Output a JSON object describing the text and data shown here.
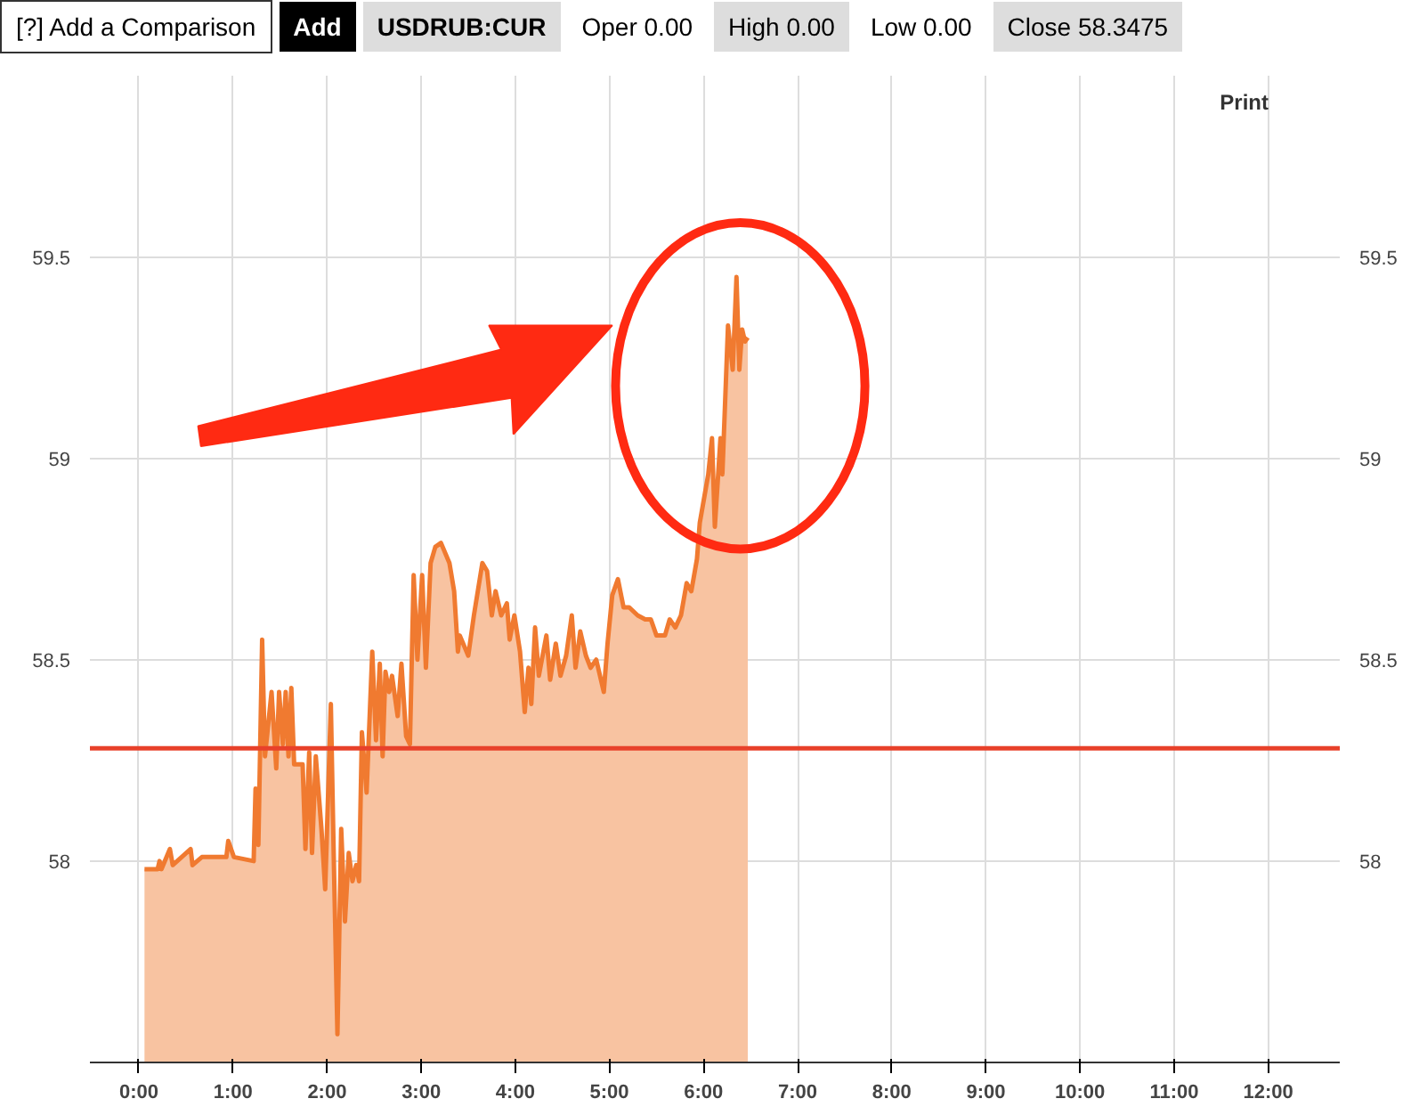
{
  "chart_data": {
    "type": "area",
    "annotations": [
      "[?] Add a Comparison",
      "Add",
      "USDRUB:CUR",
      "Oper 0.00",
      "High 0.00",
      "Low 0.00",
      "Close 58.3475",
      "Print"
    ],
    "x": [
      0.06,
      0.2,
      0.22,
      0.24,
      0.33,
      0.36,
      0.55,
      0.57,
      0.67,
      0.93,
      0.95,
      1.01,
      1.22,
      1.24,
      1.27,
      1.31,
      1.34,
      1.41,
      1.46,
      1.49,
      1.53,
      1.56,
      1.59,
      1.62,
      1.65,
      1.74,
      1.77,
      1.81,
      1.84,
      1.88,
      1.94,
      1.98,
      2.04,
      2.07,
      2.11,
      2.15,
      2.19,
      2.23,
      2.27,
      2.31,
      2.34,
      2.37,
      2.42,
      2.48,
      2.52,
      2.56,
      2.59,
      2.62,
      2.66,
      2.69,
      2.75,
      2.79,
      2.84,
      2.88,
      2.92,
      2.96,
      3.01,
      3.05,
      3.1,
      3.15,
      3.21,
      3.3,
      3.35,
      3.39,
      3.41,
      3.5,
      3.56,
      3.65,
      3.7,
      3.75,
      3.79,
      3.85,
      3.91,
      3.94,
      3.99,
      4.05,
      4.1,
      4.14,
      4.17,
      4.21,
      4.25,
      4.33,
      4.37,
      4.43,
      4.48,
      4.54,
      4.6,
      4.64,
      4.69,
      4.75,
      4.8,
      4.86,
      4.94,
      4.98,
      5.03,
      5.09,
      5.15,
      5.21,
      5.3,
      5.38,
      5.44,
      5.5,
      5.59,
      5.64,
      5.7,
      5.76,
      5.82,
      5.87,
      5.93,
      5.96,
      6.05,
      6.09,
      6.12,
      6.18,
      6.2,
      6.26,
      6.31,
      6.35,
      6.38,
      6.41,
      6.44,
      6.47
    ],
    "series": [
      {
        "color": "#f07a30",
        "values": [
          57.98,
          57.98,
          58.0,
          57.98,
          58.03,
          57.99,
          58.03,
          57.99,
          58.01,
          58.01,
          58.05,
          58.01,
          58.0,
          58.18,
          58.04,
          58.55,
          58.26,
          58.42,
          58.23,
          58.42,
          58.29,
          58.42,
          58.26,
          58.43,
          58.24,
          58.24,
          58.03,
          58.27,
          58.02,
          58.26,
          58.08,
          57.93,
          58.39,
          58.02,
          57.57,
          58.08,
          57.85,
          58.02,
          57.95,
          57.99,
          57.95,
          58.32,
          58.17,
          58.52,
          58.3,
          58.49,
          58.26,
          58.47,
          58.42,
          58.46,
          58.36,
          58.49,
          58.31,
          58.29,
          58.71,
          58.5,
          58.71,
          58.48,
          58.74,
          58.78,
          58.79,
          58.74,
          58.67,
          58.52,
          58.56,
          58.51,
          58.61,
          58.74,
          58.72,
          58.61,
          58.67,
          58.61,
          58.64,
          58.55,
          58.61,
          58.52,
          58.37,
          58.48,
          58.39,
          58.58,
          58.46,
          58.56,
          58.45,
          58.54,
          58.46,
          58.51,
          58.61,
          58.48,
          58.57,
          58.51,
          58.48,
          58.5,
          58.42,
          58.54,
          58.66,
          58.7,
          58.63,
          58.63,
          58.61,
          58.6,
          58.6,
          58.56,
          58.56,
          58.6,
          58.58,
          58.61,
          58.69,
          58.67,
          58.75,
          58.84,
          58.96,
          59.05,
          58.83,
          59.05,
          58.96,
          59.33,
          59.22,
          59.45,
          59.22,
          59.32,
          59.29,
          59.3
        ]
      }
    ],
    "xlim": [
      -0.52,
      12.76
    ],
    "xticks": [
      {
        "value": 0,
        "label": "0:00"
      },
      {
        "value": 1,
        "label": "1:00"
      },
      {
        "value": 2,
        "label": "2:00"
      },
      {
        "value": 3,
        "label": "3:00"
      },
      {
        "value": 4,
        "label": "4:00"
      },
      {
        "value": 5,
        "label": "5:00"
      },
      {
        "value": 6,
        "label": "6:00"
      },
      {
        "value": 7,
        "label": "7:00"
      },
      {
        "value": 8,
        "label": "8:00"
      },
      {
        "value": 9,
        "label": "9:00"
      },
      {
        "value": 10,
        "label": "10:00"
      },
      {
        "value": 11,
        "label": "11:00"
      },
      {
        "value": 12,
        "label": "12:00"
      }
    ],
    "ylim": [
      57.5,
      59.95
    ],
    "yticks": [
      58,
      58.5,
      59,
      59.5
    ],
    "y2lim": [
      57.5,
      59.95
    ],
    "y2ticks": [
      58,
      58.5,
      59,
      59.5
    ],
    "ref_lines": [
      {
        "axis": "y",
        "value": 58.28,
        "label": null,
        "color": "#e8412a"
      }
    ],
    "grid": true
  }
}
